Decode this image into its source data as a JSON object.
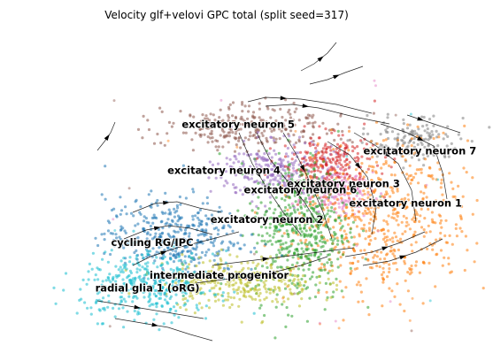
{
  "chart_data": {
    "type": "scatter",
    "title": "Velocity glf+velovi GPC total (split seed=317)",
    "xlabel": "",
    "ylabel": "",
    "axes_visible": false,
    "grid": false,
    "legend": "on data",
    "xlim": [
      0,
      100
    ],
    "ylim": [
      0,
      100
    ],
    "clusters": [
      {
        "name": "excitatory neuron 5",
        "color": "#8c564b",
        "center": [
          50,
          69
        ],
        "spread": [
          9,
          3.5
        ],
        "n": 260,
        "label_pos": [
          48,
          69
        ]
      },
      {
        "name": "excitatory neuron 7",
        "color": "#7f7f7f",
        "center": [
          84,
          65
        ],
        "spread": [
          5,
          3.5
        ],
        "n": 150,
        "label_pos": [
          86,
          61
        ]
      },
      {
        "name": "excitatory neuron 4",
        "color": "#9467bd",
        "center": [
          56,
          56
        ],
        "spread": [
          6,
          4.5
        ],
        "n": 260,
        "label_pos": [
          45,
          55
        ]
      },
      {
        "name": "excitatory neuron 3",
        "color": "#d62728",
        "center": [
          67,
          58
        ],
        "spread": [
          5,
          4.5
        ],
        "n": 260,
        "label_pos": [
          70,
          51
        ]
      },
      {
        "name": "excitatory neuron 6",
        "color": "#e377c2",
        "center": [
          68,
          49
        ],
        "spread": [
          4,
          3
        ],
        "n": 160,
        "label_pos": [
          61,
          49
        ]
      },
      {
        "name": "excitatory neuron 1",
        "color": "#ff7f0e",
        "center": [
          78,
          41
        ],
        "spread": [
          9,
          12
        ],
        "n": 600,
        "label_pos": [
          83,
          45
        ]
      },
      {
        "name": "excitatory neuron 2",
        "color": "#2ca02c",
        "center": [
          61,
          38
        ],
        "spread": [
          5,
          11
        ],
        "n": 500,
        "label_pos": [
          54,
          40
        ]
      },
      {
        "name": "cycling RG/IPC",
        "color": "#1f77b4",
        "center": [
          34,
          36
        ],
        "spread": [
          7,
          6
        ],
        "n": 380,
        "label_pos": [
          30,
          33
        ]
      },
      {
        "name": "intermediate progenitor",
        "color": "#bcbd22",
        "center": [
          48,
          22
        ],
        "spread": [
          8,
          4
        ],
        "n": 320,
        "label_pos": [
          44,
          23
        ]
      },
      {
        "name": "radial glia 1 (oRG)",
        "color": "#17becf",
        "center": [
          29,
          21
        ],
        "spread": [
          7,
          5
        ],
        "n": 380,
        "label_pos": [
          29,
          19
        ]
      }
    ],
    "outlier_colors": [
      "#ff7f0e",
      "#8c564b",
      "#e377c2",
      "#17becf"
    ]
  }
}
